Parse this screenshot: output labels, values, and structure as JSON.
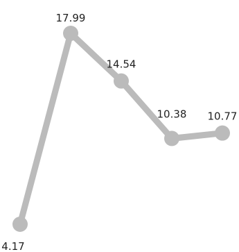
{
  "chart_data": {
    "type": "line",
    "title": "",
    "xlabel": "",
    "ylabel": "",
    "grid": false,
    "legend": "none",
    "x": [
      1,
      2,
      3,
      4,
      5
    ],
    "series": [
      {
        "values": [
          4.17,
          17.99,
          14.54,
          10.38,
          10.77
        ],
        "labels": [
          "4.17",
          "17.99",
          "14.54",
          "10.38",
          "10.77"
        ],
        "color": "#bbbbbb"
      }
    ]
  }
}
